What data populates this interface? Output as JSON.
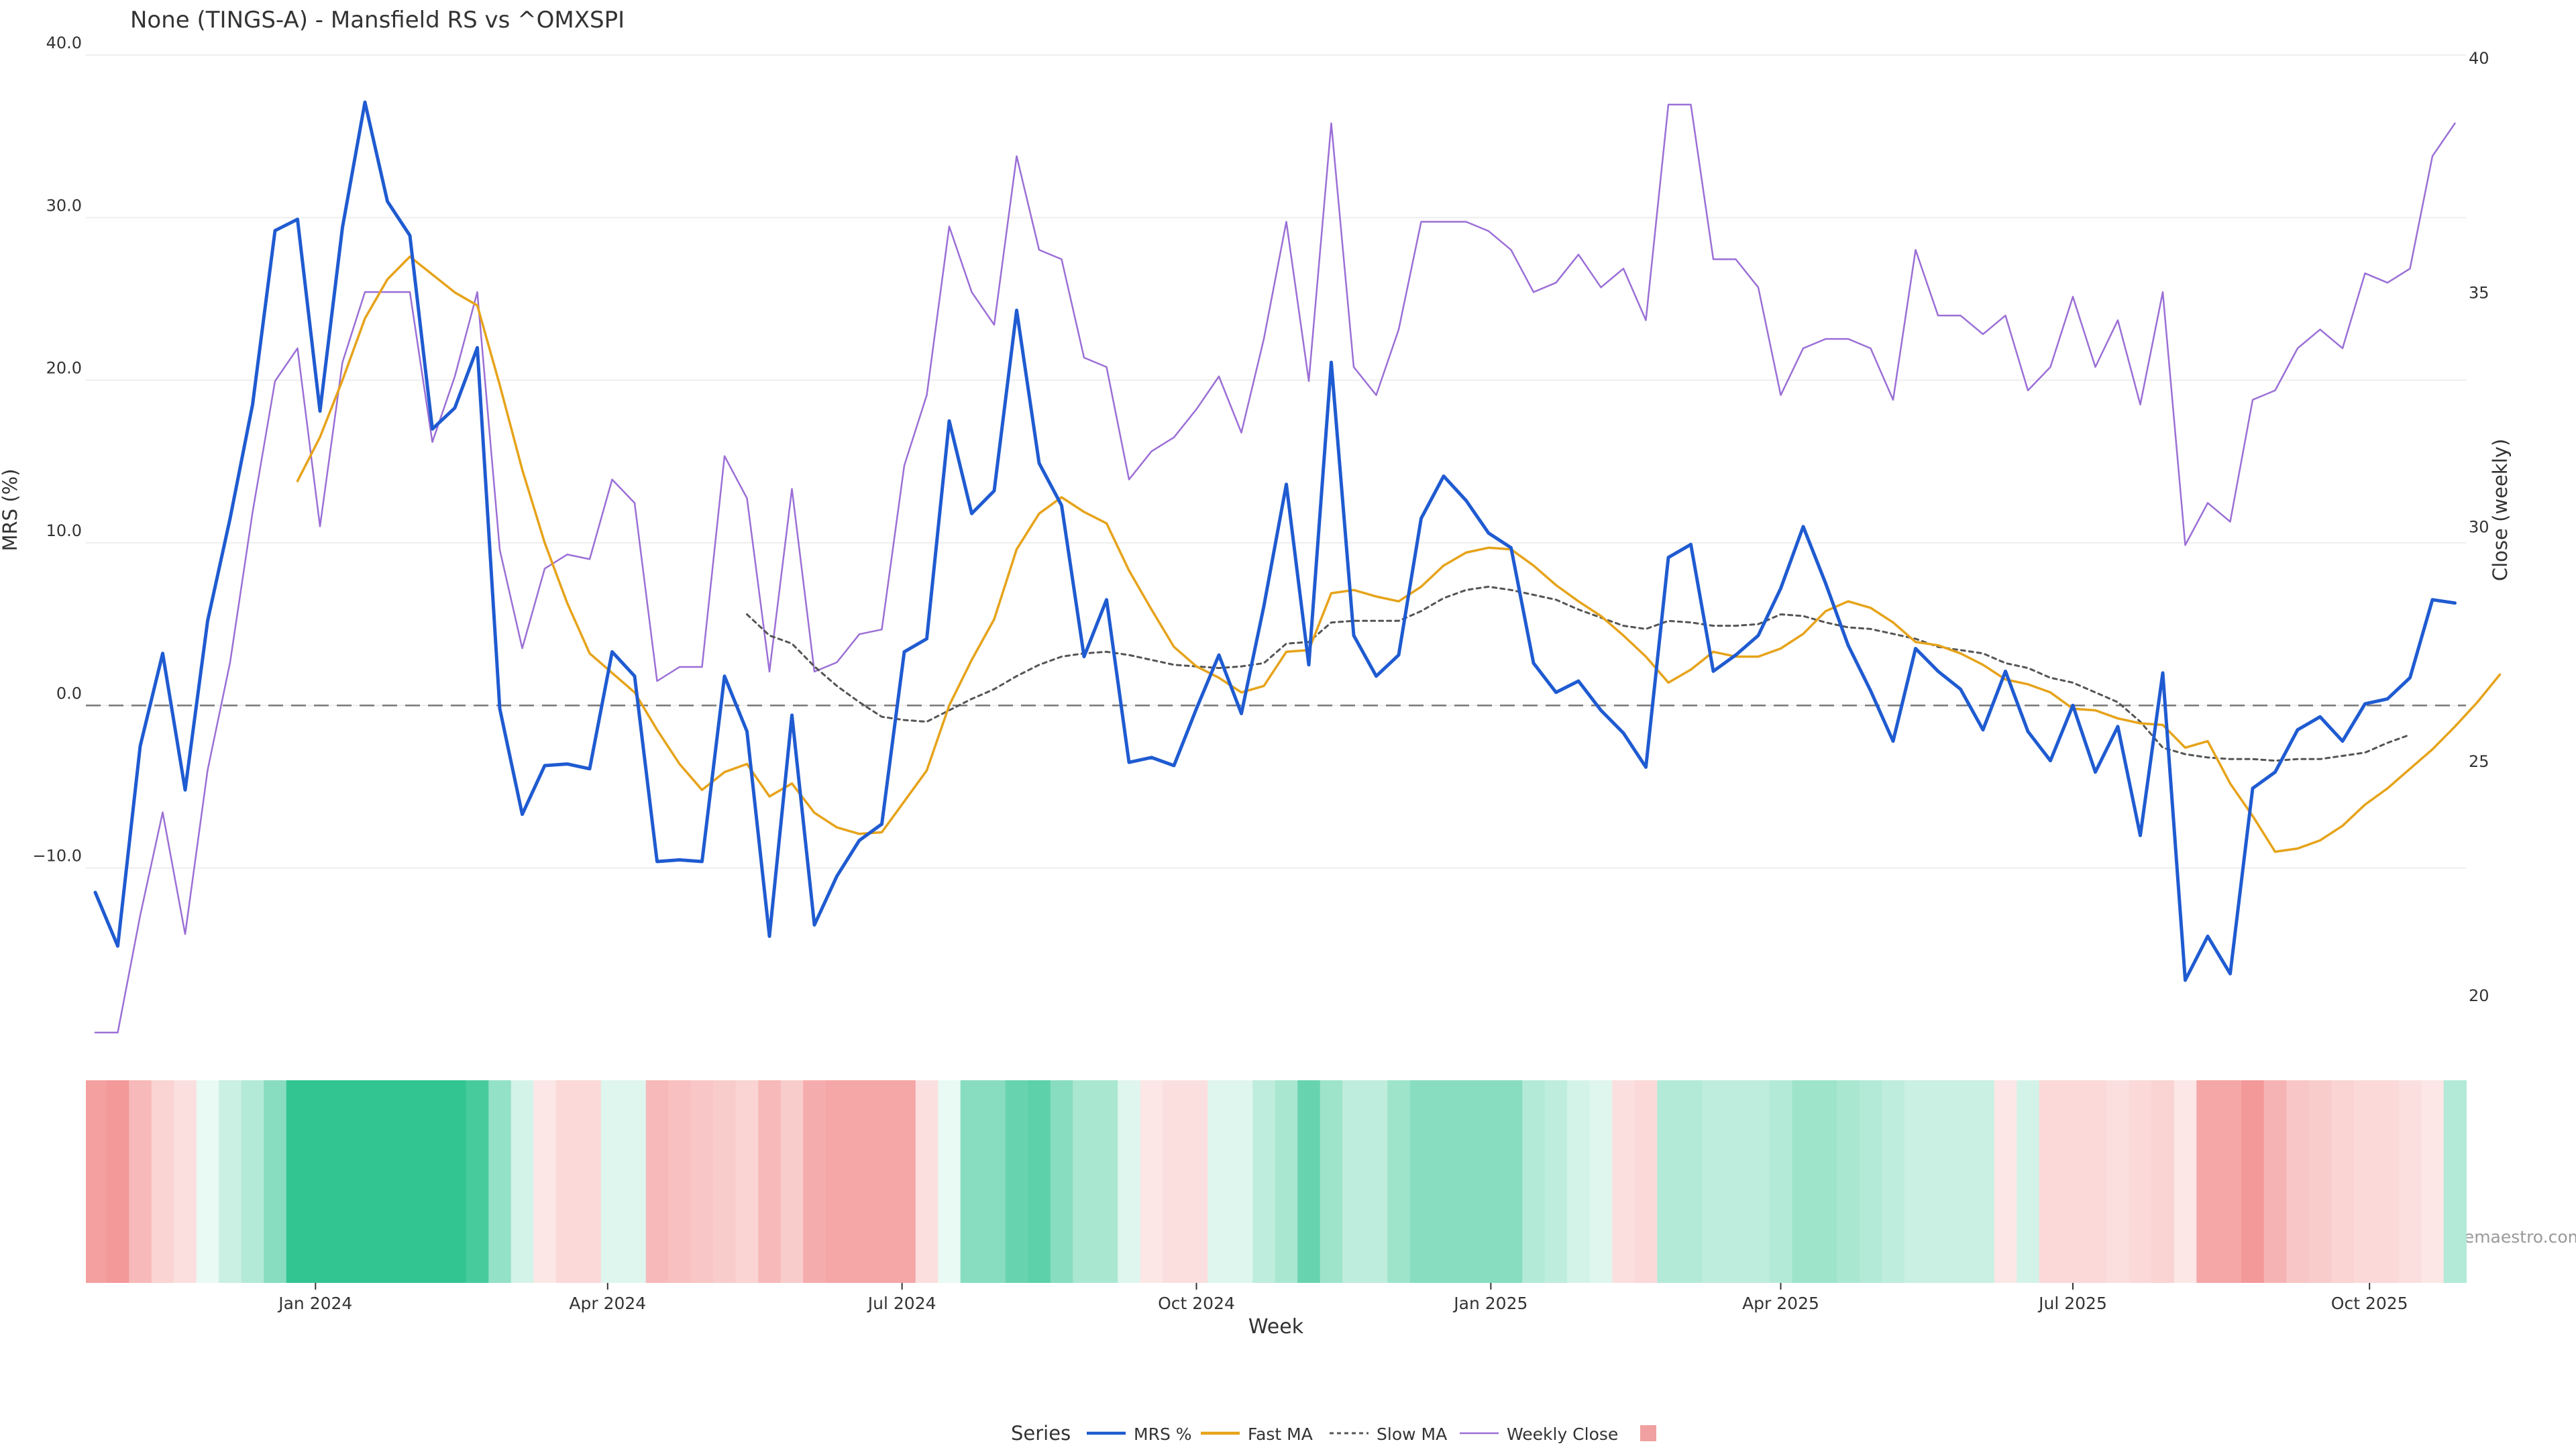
{
  "chart_data": {
    "type": "line",
    "title": "None (TINGS-A) - Mansfield RS vs ^OMXSPI",
    "xlabel": "Week",
    "ylabel_left": "MRS (%)",
    "ylabel_right": "Close (weekly)",
    "ylim_left": [
      -20,
      40
    ],
    "ylim_right": [
      17.5,
      40
    ],
    "yticks_left": [
      {
        "v": -10,
        "label": "−10.0"
      },
      {
        "v": 0,
        "label": "0.0"
      },
      {
        "v": 10,
        "label": "10.0"
      },
      {
        "v": 20,
        "label": "20.0"
      },
      {
        "v": 30,
        "label": "30.0"
      },
      {
        "v": 40,
        "label": "40.0"
      }
    ],
    "yticks_right": [
      {
        "v": 20,
        "label": "20"
      },
      {
        "v": 25,
        "label": "25"
      },
      {
        "v": 30,
        "label": "30"
      },
      {
        "v": 35,
        "label": "35"
      },
      {
        "v": 40,
        "label": "40"
      }
    ],
    "xticks": [
      {
        "week": 9.8,
        "label": "Jan 2024"
      },
      {
        "week": 22.8,
        "label": "Apr 2024"
      },
      {
        "week": 35.9,
        "label": "Jul 2024"
      },
      {
        "week": 49,
        "label": "Oct 2024"
      },
      {
        "week": 62.1,
        "label": "Jan 2025"
      },
      {
        "week": 75,
        "label": "Apr 2025"
      },
      {
        "week": 88,
        "label": "Jul 2025"
      },
      {
        "week": 101.2,
        "label": "Oct 2025"
      }
    ],
    "zero_line": 0,
    "series": [
      {
        "name": "MRS %",
        "axis": "left",
        "color": "#1f5bd1",
        "values": [
          -11.5,
          -14.8,
          -2.5,
          3.2,
          -5.2,
          5.2,
          11.5,
          18.5,
          29.2,
          29.9,
          18.1,
          29.4,
          37.1,
          31.0,
          28.9,
          17.0,
          18.3,
          22.0,
          -0.2,
          -6.7,
          -3.7,
          -3.6,
          -3.9,
          3.3,
          1.8,
          -9.6,
          -9.5,
          -9.6,
          1.8,
          -1.6,
          -14.2,
          -0.6,
          -13.5,
          -10.5,
          -8.3,
          -7.3,
          3.3,
          4.1,
          17.5,
          11.8,
          13.2,
          24.3,
          14.9,
          12.3,
          3.0,
          6.5,
          -3.5,
          -3.2,
          -3.7,
          -0.2,
          3.1,
          -0.5,
          6.1,
          13.6,
          2.5,
          21.1,
          4.3,
          1.8,
          3.1,
          11.5,
          14.1,
          12.6,
          10.6,
          9.7,
          2.6,
          0.8,
          1.5,
          -0.3,
          -1.7,
          -3.8,
          9.1,
          9.9,
          2.1,
          3.1,
          4.3,
          7.2,
          11.0,
          7.5,
          3.7,
          0.9,
          -2.2,
          3.5,
          2.1,
          1.0,
          -1.5,
          2.1,
          -1.6,
          -3.4,
          0.0,
          -4.1,
          -1.3,
          -8.0,
          2.0,
          -16.9,
          -14.2,
          -16.5,
          -5.1,
          -4.1,
          -1.5,
          -0.7,
          -2.2,
          0.1,
          0.4,
          1.7,
          6.5,
          6.3
        ]
      },
      {
        "name": "Fast MA",
        "axis": "left",
        "color": "#e6a31a",
        "start": 9,
        "values": [
          13.8,
          16.5,
          20.0,
          23.8,
          26.2,
          27.6,
          26.5,
          25.4,
          24.6,
          19.7,
          14.5,
          10.0,
          6.3,
          3.2,
          2.0,
          0.8,
          -1.5,
          -3.6,
          -5.2,
          -4.1,
          -3.6,
          -5.6,
          -4.8,
          -6.6,
          -7.5,
          -7.9,
          -7.8,
          -5.9,
          -4.0,
          0.0,
          2.8,
          5.3,
          9.6,
          11.8,
          12.8,
          11.9,
          11.2,
          8.3,
          5.9,
          3.6,
          2.4,
          1.7,
          0.8,
          1.2,
          3.3,
          3.4,
          6.9,
          7.1,
          6.7,
          6.4,
          7.3,
          8.6,
          9.4,
          9.7,
          9.6,
          8.6,
          7.4,
          6.4,
          5.5,
          4.3,
          3.0,
          1.4,
          2.2,
          3.3,
          3.0,
          3.0,
          3.5,
          4.4,
          5.8,
          6.4,
          6.0,
          5.1,
          3.9,
          3.7,
          3.2,
          2.5,
          1.6,
          1.3,
          0.8,
          -0.2,
          -0.3,
          -0.8,
          -1.1,
          -1.2,
          -2.6,
          -2.2,
          -4.8,
          -6.8,
          -9.0,
          -8.8,
          -8.3,
          -7.4,
          -6.1,
          -5.1,
          -3.9,
          -2.7,
          -1.3,
          0.2,
          1.9
        ]
      },
      {
        "name": "Slow MA",
        "axis": "left",
        "color": "#555555",
        "dashed": true,
        "start": 29,
        "values": [
          5.6,
          4.3,
          3.8,
          2.4,
          1.2,
          0.2,
          -0.7,
          -0.9,
          -1.0,
          -0.3,
          0.4,
          1.0,
          1.8,
          2.5,
          3.0,
          3.2,
          3.3,
          3.1,
          2.8,
          2.5,
          2.4,
          2.3,
          2.4,
          2.6,
          3.8,
          3.9,
          5.1,
          5.2,
          5.2,
          5.2,
          5.8,
          6.6,
          7.1,
          7.3,
          7.1,
          6.8,
          6.5,
          5.9,
          5.4,
          4.9,
          4.7,
          5.2,
          5.1,
          4.9,
          4.9,
          5.0,
          5.6,
          5.5,
          5.1,
          4.8,
          4.7,
          4.4,
          4.1,
          3.6,
          3.4,
          3.2,
          2.6,
          2.3,
          1.7,
          1.4,
          0.8,
          0.2,
          -1.0,
          -2.6,
          -3.0,
          -3.2,
          -3.3,
          -3.3,
          -3.4,
          -3.3,
          -3.3,
          -3.1,
          -2.9,
          -2.3,
          -1.8
        ]
      },
      {
        "name": "Weekly Close",
        "axis": "right",
        "color": "#9b6fd6",
        "values": [
          19.2,
          19.2,
          21.7,
          23.9,
          21.3,
          24.8,
          27.1,
          30.3,
          33.1,
          33.8,
          30.0,
          33.5,
          35.0,
          35.0,
          35.0,
          31.8,
          33.2,
          35.0,
          29.5,
          27.4,
          29.1,
          29.4,
          29.3,
          31.0,
          30.5,
          26.7,
          27.0,
          27.0,
          31.5,
          30.6,
          26.9,
          30.8,
          26.9,
          27.1,
          27.7,
          27.8,
          31.3,
          32.8,
          36.4,
          35.0,
          34.3,
          37.9,
          35.9,
          35.7,
          33.6,
          33.4,
          31.0,
          31.6,
          31.9,
          32.5,
          33.2,
          32.0,
          34.0,
          36.5,
          33.1,
          38.6,
          33.4,
          32.8,
          34.2,
          36.5,
          36.5,
          36.5,
          36.3,
          35.9,
          35.0,
          35.2,
          35.8,
          35.1,
          35.5,
          34.4,
          39.0,
          39.0,
          35.7,
          35.7,
          35.1,
          32.8,
          33.8,
          34.0,
          34.0,
          33.8,
          32.7,
          35.9,
          34.5,
          34.5,
          34.1,
          34.5,
          32.9,
          33.4,
          34.9,
          33.4,
          34.4,
          32.6,
          35.0,
          29.6,
          30.5,
          30.1,
          32.7,
          32.9,
          33.8,
          34.2,
          33.8,
          35.4,
          35.2,
          35.5,
          37.9,
          38.6
        ]
      }
    ],
    "heatmap": {
      "type": "heatmap",
      "rows": 1,
      "values": [
        -0.75,
        -0.8,
        -0.55,
        -0.35,
        -0.25,
        0.1,
        0.25,
        0.35,
        0.55,
        0.95,
        0.95,
        0.95,
        0.95,
        0.95,
        0.95,
        0.95,
        0.95,
        0.85,
        0.5,
        0.2,
        -0.2,
        -0.3,
        -0.3,
        0.15,
        0.15,
        -0.55,
        -0.5,
        -0.45,
        -0.4,
        -0.35,
        -0.55,
        -0.4,
        -0.65,
        -0.7,
        -0.7,
        -0.7,
        -0.7,
        -0.25,
        0.1,
        0.55,
        0.55,
        0.7,
        0.75,
        0.55,
        0.4,
        0.4,
        0.15,
        -0.2,
        -0.25,
        -0.25,
        0.15,
        0.15,
        0.3,
        0.4,
        0.7,
        0.45,
        0.3,
        0.3,
        0.45,
        0.55,
        0.55,
        0.55,
        0.55,
        0.55,
        0.35,
        0.3,
        0.2,
        0.15,
        -0.25,
        -0.3,
        0.35,
        0.35,
        0.3,
        0.3,
        0.3,
        0.35,
        0.45,
        0.45,
        0.4,
        0.35,
        0.3,
        0.25,
        0.25,
        0.25,
        0.25,
        -0.2,
        0.2,
        -0.3,
        -0.3,
        -0.3,
        -0.25,
        -0.3,
        -0.35,
        -0.2,
        -0.7,
        -0.7,
        -0.8,
        -0.6,
        -0.45,
        -0.4,
        -0.35,
        -0.3,
        -0.3,
        -0.25,
        -0.2,
        0.35,
        0.4
      ],
      "color_positive": "#27c28c",
      "color_negative": "#f08080"
    },
    "legend": {
      "title": "Series",
      "placement": "bottom-center",
      "items": [
        {
          "label": "MRS %",
          "color": "#1f5bd1",
          "style": "solid"
        },
        {
          "label": "Fast MA",
          "color": "#e6a31a",
          "style": "solid"
        },
        {
          "label": "Slow MA",
          "color": "#555555",
          "style": "dashed"
        },
        {
          "label": "Weekly Close",
          "color": "#9b6fd6",
          "style": "thin"
        },
        {
          "label": "",
          "color": "#f0a0a0",
          "style": "swatch"
        }
      ]
    },
    "source": "source: sharemaestro.com"
  }
}
